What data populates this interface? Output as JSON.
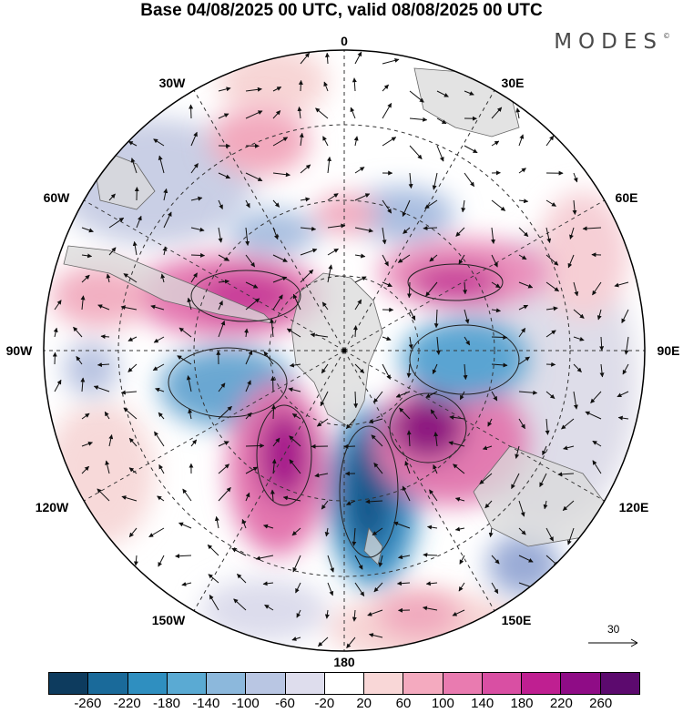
{
  "title": "Base 04/08/2025 00 UTC, valid 08/08/2025 00 UTC",
  "brand": "MODES",
  "brand_mark": "©",
  "longitude_labels": {
    "lon_0": "0",
    "lon_30e": "30E",
    "lon_60e": "60E",
    "lon_90e": "90E",
    "lon_120e": "120E",
    "lon_150e": "150E",
    "lon_180": "180",
    "lon_150w": "150W",
    "lon_120w": "120W",
    "lon_90w": "90W",
    "lon_60w": "60W",
    "lon_30w": "30W"
  },
  "vector_scale": {
    "value": "30",
    "icon": "reference-arrow-icon"
  },
  "colorbar": {
    "colors": [
      "#0d3b5e",
      "#1a6a9a",
      "#2f8fc0",
      "#5aaad3",
      "#8cb8dc",
      "#b9c6e3",
      "#dedded",
      "#ffffff",
      "#f9d7d7",
      "#f4aabf",
      "#e97bb0",
      "#d94fa3",
      "#bf1f91",
      "#8f0c86",
      "#5c0a6e"
    ],
    "tick_labels": [
      "-260",
      "-220",
      "-180",
      "-140",
      "-100",
      "-60",
      "-20",
      "20",
      "60",
      "100",
      "140",
      "180",
      "220",
      "260"
    ]
  },
  "anomaly_centers": [
    {
      "sign": "positive",
      "level": 100,
      "lon": -20,
      "lat": -58
    },
    {
      "sign": "positive",
      "level": 180,
      "lon": -70,
      "lat": -67
    },
    {
      "sign": "positive",
      "level": 60,
      "lon": -95,
      "lat": -52
    },
    {
      "sign": "negative",
      "level": -100,
      "lon": -100,
      "lat": -70
    },
    {
      "sign": "positive",
      "level": 260,
      "lon": -150,
      "lat": -64
    },
    {
      "sign": "negative",
      "level": -260,
      "lon": 170,
      "lat": -64
    },
    {
      "sign": "positive",
      "level": 260,
      "lon": 135,
      "lat": -66
    },
    {
      "sign": "negative",
      "level": -140,
      "lon": 95,
      "lat": -65
    },
    {
      "sign": "positive",
      "level": 180,
      "lon": 55,
      "lat": -66
    },
    {
      "sign": "negative",
      "level": -60,
      "lon": 30,
      "lat": -70
    },
    {
      "sign": "negative",
      "level": -100,
      "lon": 145,
      "lat": -42
    }
  ]
}
